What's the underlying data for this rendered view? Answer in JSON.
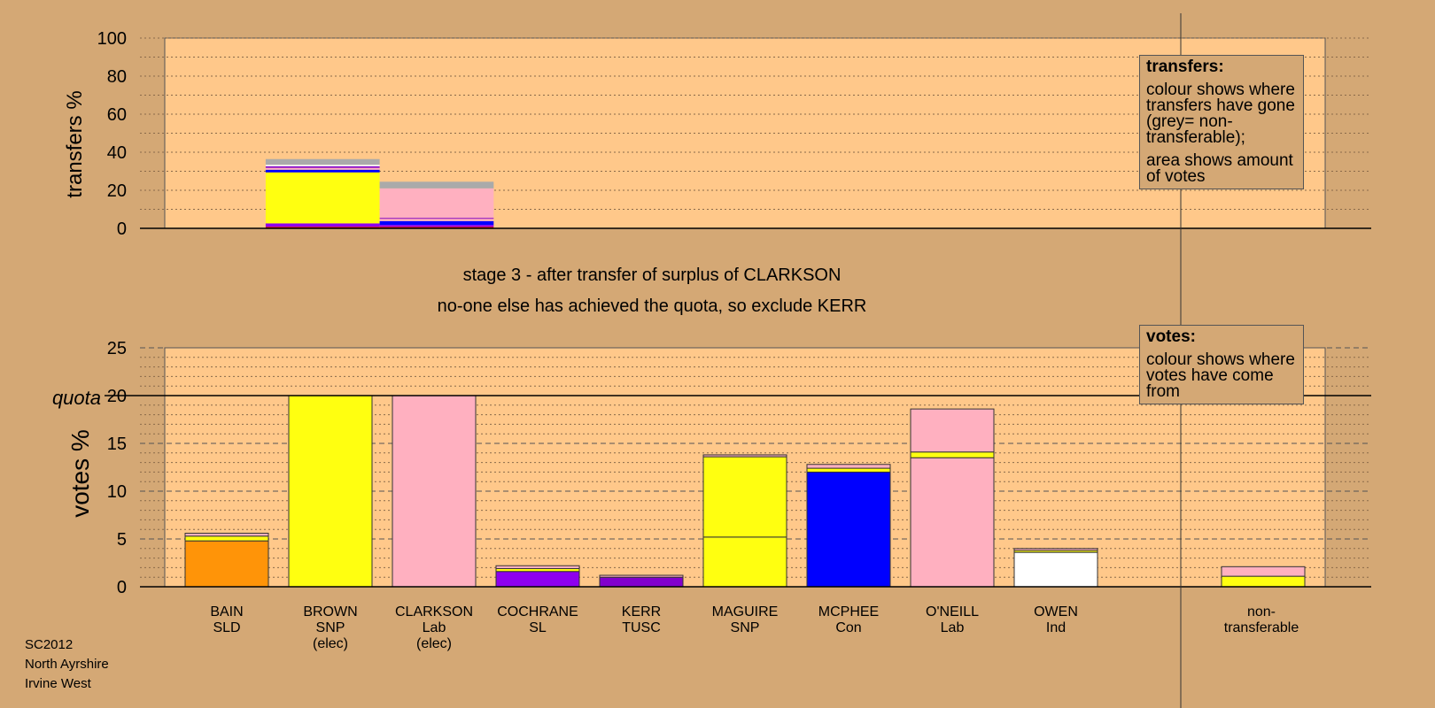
{
  "stage_title": "stage 3 - after transfer of surplus of CLARKSON",
  "stage_subtitle": "no-one else has achieved the quota, so exclude KERR",
  "legend_transfers": {
    "title": "transfers:",
    "line1": "colour shows where transfers have gone (grey= non-transferable);",
    "line2": "area shows amount of votes"
  },
  "legend_votes": {
    "title": "votes:",
    "line1": "colour shows where votes have come from"
  },
  "footer": {
    "line1": "SC2012",
    "line2": "North Ayrshire",
    "line3": "Irvine West"
  },
  "colors": {
    "background": "#d4a875",
    "plot_bg": "#ffc88a",
    "SLD": "#ff9408",
    "SNP": "#ffff10",
    "Lab": "#ffb0c0",
    "SL": "#8e00ee",
    "TUSC": "#8200cc",
    "Con": "#0000ff",
    "Ind": "#ffffff",
    "nontransferable": "#aaaaaa",
    "red": "#dd0000"
  },
  "chart_data": [
    {
      "type": "bar",
      "stacked": true,
      "ylabel": "transfers %",
      "ylim": [
        0,
        100
      ],
      "yticks": [
        0,
        20,
        40,
        60,
        80,
        100
      ],
      "grid": true,
      "bars": [
        {
          "label": "Brown surplus",
          "x_start": 0.7,
          "x_end": 1.8,
          "segments": [
            {
              "color_key": "red",
              "value": 0.8
            },
            {
              "color_key": "SL",
              "value": 1.8
            },
            {
              "color_key": "SNP",
              "value": 26.8
            },
            {
              "color_key": "Con",
              "value": 1.4
            },
            {
              "color_key": "Lab",
              "value": 1.0
            },
            {
              "color_key": "TUSC",
              "value": 0.8
            },
            {
              "color_key": "Ind",
              "value": 0.8
            },
            {
              "color_key": "nontransferable",
              "value": 3.0
            }
          ]
        },
        {
          "label": "Clarkson surplus",
          "x_start": 1.8,
          "x_end": 2.9,
          "segments": [
            {
              "color_key": "red",
              "value": 0.8
            },
            {
              "color_key": "SL",
              "value": 1.0
            },
            {
              "color_key": "Con",
              "value": 2.0
            },
            {
              "color_key": "Lab",
              "value": 1.2
            },
            {
              "color_key": "TUSC",
              "value": 0.5
            },
            {
              "color_key": "Lab",
              "value": 15.5
            },
            {
              "color_key": "nontransferable",
              "value": 3.5
            }
          ]
        }
      ]
    },
    {
      "type": "bar",
      "stacked": true,
      "ylabel": "votes %",
      "ylim": [
        0,
        25
      ],
      "yticks": [
        0,
        5,
        10,
        15,
        20,
        25
      ],
      "quota": 20,
      "quota_label": "quota",
      "grid": true,
      "candidates": [
        {
          "name": "BAIN",
          "party": "SLD",
          "note": "",
          "total": 5.6,
          "segments": [
            {
              "color_key": "SLD",
              "value": 4.8
            },
            {
              "color_key": "SNP",
              "value": 0.5
            },
            {
              "color_key": "Lab",
              "value": 0.3
            }
          ]
        },
        {
          "name": "BROWN",
          "party": "SNP",
          "note": "(elec)",
          "total": 20.0,
          "segments": [
            {
              "color_key": "SNP",
              "value": 20.0
            }
          ]
        },
        {
          "name": "CLARKSON",
          "party": "Lab",
          "note": "(elec)",
          "total": 20.0,
          "segments": [
            {
              "color_key": "Lab",
              "value": 20.0
            }
          ]
        },
        {
          "name": "COCHRANE",
          "party": "SL",
          "note": "",
          "total": 2.2,
          "segments": [
            {
              "color_key": "SL",
              "value": 1.6
            },
            {
              "color_key": "SNP",
              "value": 0.3
            },
            {
              "color_key": "Lab",
              "value": 0.3
            }
          ]
        },
        {
          "name": "KERR",
          "party": "TUSC",
          "note": "",
          "total": 1.2,
          "segments": [
            {
              "color_key": "TUSC",
              "value": 1.0
            },
            {
              "color_key": "Lab",
              "value": 0.2
            }
          ]
        },
        {
          "name": "MAGUIRE",
          "party": "SNP",
          "note": "",
          "total": 13.8,
          "segments": [
            {
              "color_key": "SNP",
              "value": 5.2
            },
            {
              "color_key": "SNP",
              "value": 8.4
            },
            {
              "color_key": "Lab",
              "value": 0.2
            }
          ]
        },
        {
          "name": "MCPHEE",
          "party": "Con",
          "note": "",
          "total": 12.8,
          "segments": [
            {
              "color_key": "Con",
              "value": 12.0
            },
            {
              "color_key": "SNP",
              "value": 0.4
            },
            {
              "color_key": "Lab",
              "value": 0.4
            }
          ]
        },
        {
          "name": "O'NEILL",
          "party": "Lab",
          "note": "",
          "total": 18.6,
          "segments": [
            {
              "color_key": "Lab",
              "value": 13.5
            },
            {
              "color_key": "SNP",
              "value": 0.6
            },
            {
              "color_key": "Lab",
              "value": 4.5
            }
          ]
        },
        {
          "name": "OWEN",
          "party": "Ind",
          "note": "",
          "total": 4.0,
          "segments": [
            {
              "color_key": "Ind",
              "value": 3.6
            },
            {
              "color_key": "SNP",
              "value": 0.2
            },
            {
              "color_key": "Lab",
              "value": 0.2
            }
          ]
        },
        {
          "name": "non-",
          "party": "transferable",
          "note": "",
          "total": 2.1,
          "nontransferable": true,
          "segments": [
            {
              "color_key": "SNP",
              "value": 1.1
            },
            {
              "color_key": "Lab",
              "value": 1.0
            }
          ]
        }
      ]
    }
  ]
}
